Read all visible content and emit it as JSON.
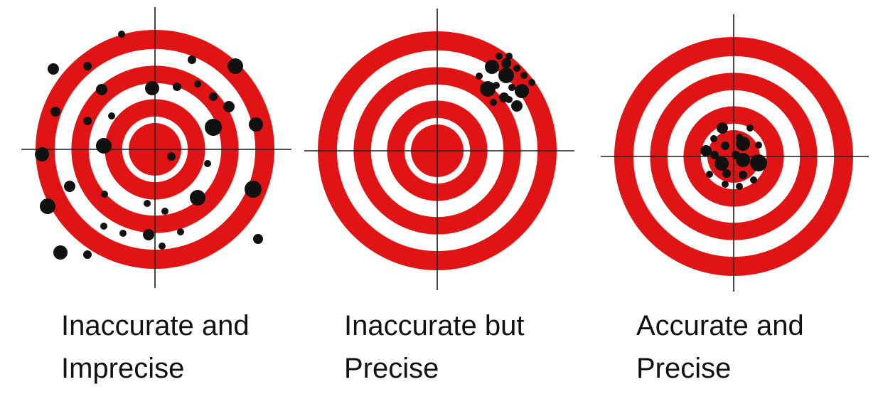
{
  "colors": {
    "ring_red": "#e01414",
    "ring_white": "#ffffff",
    "crosshair": "#1a1a1a",
    "shot": "#111111"
  },
  "panels": [
    {
      "caption_line1": "Inaccurate and",
      "caption_line2": "Imprecise",
      "pattern": "scattered"
    },
    {
      "caption_line1": "Inaccurate but",
      "caption_line2": "Precise",
      "pattern": "tight-cluster-upper-right"
    },
    {
      "caption_line1": "Accurate and",
      "caption_line2": "Precise",
      "pattern": "tight-cluster-center"
    }
  ]
}
